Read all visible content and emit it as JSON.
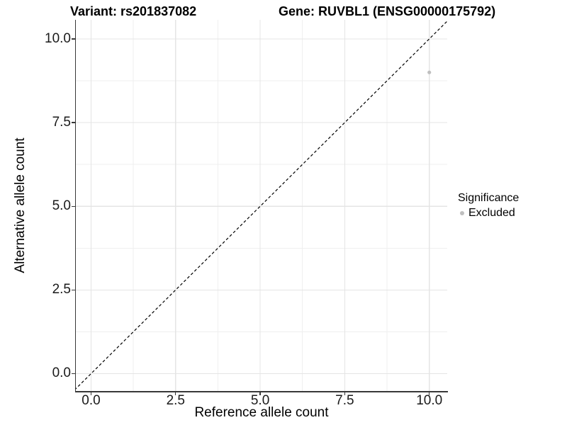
{
  "figure": {
    "kind": "ggplot-style scatter plot"
  },
  "chart_data": {
    "type": "scatter",
    "titles": [
      "Variant: rs201837082",
      "Gene: RUVBL1 (ENSG00000175792)"
    ],
    "xlabel": "Reference allele count",
    "ylabel": "Alternative allele count",
    "xlim": [
      -0.45,
      10.53
    ],
    "ylim": [
      -0.54,
      10.57
    ],
    "x_ticks": [
      0,
      2.5,
      5,
      7.5,
      10
    ],
    "x_tick_labels": [
      "0.0",
      "2.5",
      "5.0",
      "7.5",
      "10.0"
    ],
    "y_ticks": [
      0,
      2.5,
      5,
      7.5,
      10
    ],
    "y_tick_labels": [
      "0.0",
      "2.5",
      "5.0",
      "7.5",
      "10.0"
    ],
    "x_minor_ticks": [
      1.25,
      3.75,
      6.25,
      8.75
    ],
    "y_minor_ticks": [
      1.25,
      3.75,
      6.25,
      8.75
    ],
    "grid": {
      "major": true,
      "minor": true
    },
    "series": [
      {
        "name": "Excluded",
        "color": "#bfbfbf",
        "points": [
          {
            "x": 10,
            "y": 9
          }
        ]
      }
    ],
    "reference_line": {
      "equation": "y = x",
      "style": "dashed",
      "color": "#000000"
    },
    "legend": {
      "title": "Significance",
      "position": "right",
      "entries": [
        {
          "label": "Excluded",
          "color": "#bfbfbf"
        }
      ]
    }
  },
  "colors": {
    "background": "#ffffff",
    "grid_major": "#e4e4e4",
    "grid_minor": "#efefef",
    "axis_line": "#383838",
    "axis_text": "#1a1a1a",
    "title_text": "#000000"
  }
}
